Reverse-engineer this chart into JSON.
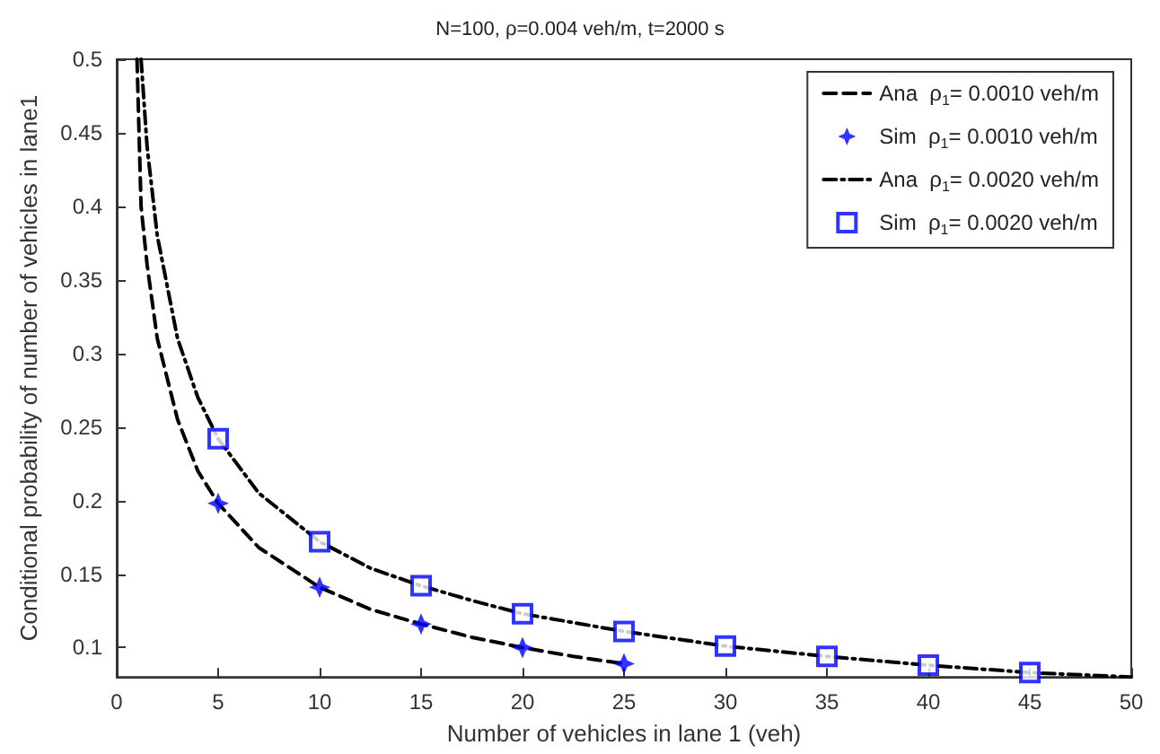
{
  "chart_data": {
    "type": "line",
    "title": "N=100, ρ=0.004 veh/m, t=2000 s",
    "xlabel": "Number of vehicles in lane 1 (veh)",
    "ylabel": "Conditional probability of number of vehicles in lane1",
    "xlim": [
      0,
      50
    ],
    "ylim": [
      0.08,
      0.5
    ],
    "xticks": [
      0,
      5,
      10,
      15,
      20,
      25,
      30,
      35,
      40,
      45,
      50
    ],
    "yticks": [
      0.1,
      0.15,
      0.2,
      0.25,
      0.3,
      0.35,
      0.4,
      0.45,
      0.5
    ],
    "grid": false,
    "legend": "top right",
    "series": [
      {
        "name": "Ana  ρ$_{1}$= 0.0010 veh/m",
        "type": "line",
        "color": "#000000",
        "line_style": "dashed",
        "marker": "none",
        "x": [
          1,
          1.2,
          1.5,
          2,
          3,
          4,
          5,
          7,
          10,
          12.5,
          15,
          17.5,
          20,
          22.5,
          25
        ],
        "values": [
          0.5,
          0.4,
          0.36,
          0.31,
          0.255,
          0.22,
          0.198,
          0.168,
          0.141,
          0.126,
          0.116,
          0.107,
          0.1,
          0.094,
          0.089
        ]
      },
      {
        "name": "Sim  ρ$_{1}$= 0.0010 veh/m",
        "type": "scatter",
        "color": "#0000ff",
        "marker": "star",
        "x": [
          5,
          10,
          15,
          20,
          25
        ],
        "values": [
          0.198,
          0.141,
          0.116,
          0.1,
          0.089
        ]
      },
      {
        "name": "Ana  ρ$_{1}$= 0.0020 veh/m",
        "type": "line",
        "color": "#000000",
        "line_style": "dashdot",
        "marker": "none",
        "x": [
          1.2,
          1.5,
          2,
          3,
          4,
          5,
          7,
          10,
          12.5,
          15,
          17.5,
          20,
          25,
          30,
          35,
          40,
          45,
          50
        ],
        "values": [
          0.5,
          0.44,
          0.38,
          0.31,
          0.27,
          0.242,
          0.205,
          0.172,
          0.154,
          0.142,
          0.132,
          0.123,
          0.111,
          0.101,
          0.094,
          0.088,
          0.083,
          0.08
        ]
      },
      {
        "name": "Sim  ρ$_{1}$= 0.0020 veh/m",
        "type": "scatter",
        "color": "#0000ff",
        "marker": "square",
        "x": [
          5,
          10,
          15,
          20,
          25,
          30,
          35,
          40,
          45
        ],
        "values": [
          0.242,
          0.172,
          0.142,
          0.123,
          0.111,
          0.101,
          0.094,
          0.088,
          0.083
        ]
      }
    ]
  }
}
